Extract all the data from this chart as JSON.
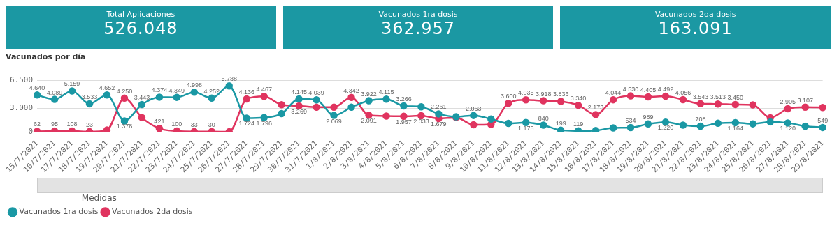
{
  "chart_data": [
    {
      "type": "other",
      "title": "Total Aplicaciones",
      "annotations": [
        "526.048"
      ]
    },
    {
      "type": "other",
      "title": "Vacunados 1ra dosis",
      "annotations": [
        "362.957"
      ]
    },
    {
      "type": "other",
      "title": "Vacunados 2da dosis",
      "annotations": [
        "163.091"
      ]
    },
    {
      "type": "line",
      "title": "Vacunados por día",
      "legend_title": "Medidas",
      "legend": "bottom left",
      "grid": "y",
      "marker": "circle",
      "categories": [
        "15/7/2021",
        "16/7/2021",
        "17/7/2021",
        "18/7/2021",
        "19/7/2021",
        "20/7/2021",
        "21/7/2021",
        "22/7/2021",
        "23/7/2021",
        "24/7/2021",
        "25/7/2021",
        "26/7/2021",
        "27/7/2021",
        "28/7/2021",
        "29/7/2021",
        "30/7/2021",
        "31/7/2021",
        "1/8/2021",
        "2/8/2021",
        "3/8/2021",
        "4/8/2021",
        "5/8/2021",
        "6/8/2021",
        "7/8/2021",
        "8/8/2021",
        "9/8/2021",
        "10/8/2021",
        "11/8/2021",
        "12/8/2021",
        "13/8/2021",
        "14/8/2021",
        "15/8/2021",
        "16/8/2021",
        "17/8/2021",
        "18/8/2021",
        "19/8/2021",
        "20/8/2021",
        "21/8/2021",
        "22/8/2021",
        "23/8/2021",
        "24/8/2021",
        "25/8/2021",
        "26/8/2021",
        "27/8/2021",
        "28/8/2021",
        "29/8/2021"
      ],
      "ylim": [
        0,
        6500
      ],
      "yticks": [
        0,
        {
          "value": 3000,
          "label": "3.000"
        },
        {
          "value": 6500,
          "label": "6.500"
        }
      ],
      "series": [
        {
          "name": "Vacunados 1ra dosis",
          "color": "#1a98a4",
          "values": [
            4640,
            4089,
            5159,
            3533,
            4652,
            1378,
            3443,
            4374,
            4349,
            4998,
            4252,
            5788,
            1724,
            1796,
            2290,
            4145,
            4039,
            2069,
            3100,
            3922,
            4115,
            3266,
            3150,
            2261,
            1900,
            2063,
            1610,
            1060,
            1175,
            840,
            199,
            119,
            170,
            500,
            534,
            989,
            1220,
            850,
            708,
            1080,
            1164,
            1010,
            1250,
            1120,
            720,
            549
          ],
          "value_labels": [
            "4.640",
            "4.089",
            "5.159",
            "3.533",
            "4.652",
            "1.378",
            "3.443",
            "4.374",
            "4.349",
            "4.998",
            "4.252",
            "5.788",
            "1.724",
            "1.796",
            null,
            "4.145",
            "4.039",
            "2.069",
            null,
            "3.922",
            "4.115",
            "3.266",
            null,
            "2.261",
            null,
            "2.063",
            null,
            null,
            "1.175",
            "840",
            "199",
            "119",
            null,
            null,
            "534",
            "989",
            "1.220",
            null,
            "708",
            null,
            "1.164",
            null,
            null,
            "1.120",
            null,
            "549"
          ]
        },
        {
          "name": "Vacunados 2da dosis",
          "color": "#e0345f",
          "values": [
            62,
            95,
            108,
            23,
            220,
            4250,
            1800,
            421,
            100,
            33,
            30,
            0,
            4136,
            4467,
            3420,
            3269,
            3100,
            3100,
            4342,
            2091,
            1990,
            1957,
            2033,
            1679,
            1800,
            890,
            940,
            3600,
            4035,
            3918,
            3836,
            3340,
            2173,
            4044,
            4530,
            4405,
            4492,
            4056,
            3543,
            3513,
            3450,
            3400,
            1780,
            2905,
            3107,
            3070
          ],
          "value_labels": [
            "62",
            "95",
            "108",
            "23",
            null,
            "4.250",
            null,
            "421",
            "100",
            "33",
            "30",
            null,
            "4.136",
            "4.467",
            null,
            "3.269",
            null,
            null,
            "4.342",
            "2.091",
            null,
            "1.957",
            "2.033",
            "1.679",
            null,
            null,
            null,
            "3.600",
            "4.035",
            "3.918",
            "3.836",
            "3.340",
            "2.173",
            "4.044",
            "4.530",
            "4.405",
            "4.492",
            "4.056",
            "3.543",
            "3.513",
            "3.450",
            null,
            null,
            "2.905",
            "3.107",
            null
          ]
        }
      ]
    }
  ]
}
